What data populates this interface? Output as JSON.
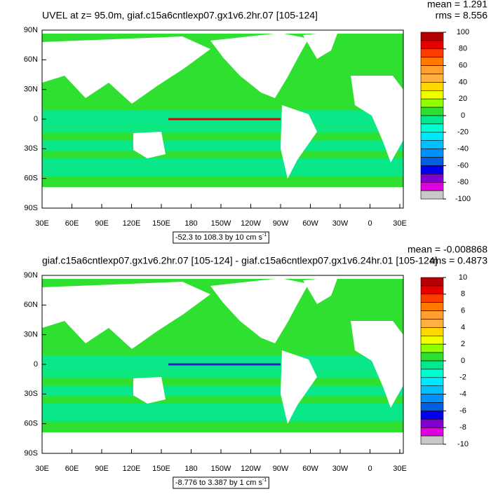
{
  "panels": [
    {
      "title": "UVEL at z=  95.0m, giaf.c15a6cntlexp07.gx1v6.2hr.07 [105-124]",
      "mean": "mean = 1.291",
      "rms": "rms = 8.556",
      "lat_ticks": [
        "90N",
        "60N",
        "30N",
        "0",
        "30S",
        "60S",
        "90S"
      ],
      "lon_ticks": [
        "30E",
        "60E",
        "90E",
        "120E",
        "150E",
        "180",
        "150W",
        "120W",
        "90W",
        "60W",
        "30W",
        "0",
        "30E"
      ],
      "range": "-52.3 to 108.3 by 10 cm s",
      "range_unit_exp": "-1",
      "colorbar": {
        "lim": [
          -100,
          100
        ],
        "levels": [
          100,
          80,
          60,
          40,
          20,
          0,
          -20,
          -40,
          -60,
          -80,
          -100
        ]
      }
    },
    {
      "title": "giaf.c15a6cntlexp07.gx1v6.2hr.07 [105-124] - giaf.c15a6cntlexp07.gx1v6.24hr.01 [105-124]",
      "mean": "mean = -0.008868",
      "rms": "rms = 0.4873",
      "lat_ticks": [
        "90N",
        "60N",
        "30N",
        "0",
        "30S",
        "60S",
        "90S"
      ],
      "lon_ticks": [
        "30E",
        "60E",
        "90E",
        "120E",
        "150E",
        "180",
        "150W",
        "120W",
        "90W",
        "60W",
        "30W",
        "0",
        "30E"
      ],
      "range": "-8.776 to 3.387 by 1 cm s",
      "range_unit_exp": "-1",
      "colorbar": {
        "lim": [
          -10,
          10
        ],
        "levels": [
          10,
          8,
          6,
          4,
          2,
          0,
          -2,
          -4,
          -6,
          -8,
          -10
        ]
      }
    }
  ],
  "colorbar_colors": [
    "#b40000",
    "#e60000",
    "#ff3c00",
    "#ff7800",
    "#ffa030",
    "#ffb040",
    "#ffd800",
    "#f0ff00",
    "#90ff00",
    "#30e030",
    "#00e890",
    "#00ffd0",
    "#00e8ff",
    "#00c0ff",
    "#0090ff",
    "#0060e0",
    "#0000f0",
    "#8000d0",
    "#e000e0",
    "#c8c8c8"
  ]
}
